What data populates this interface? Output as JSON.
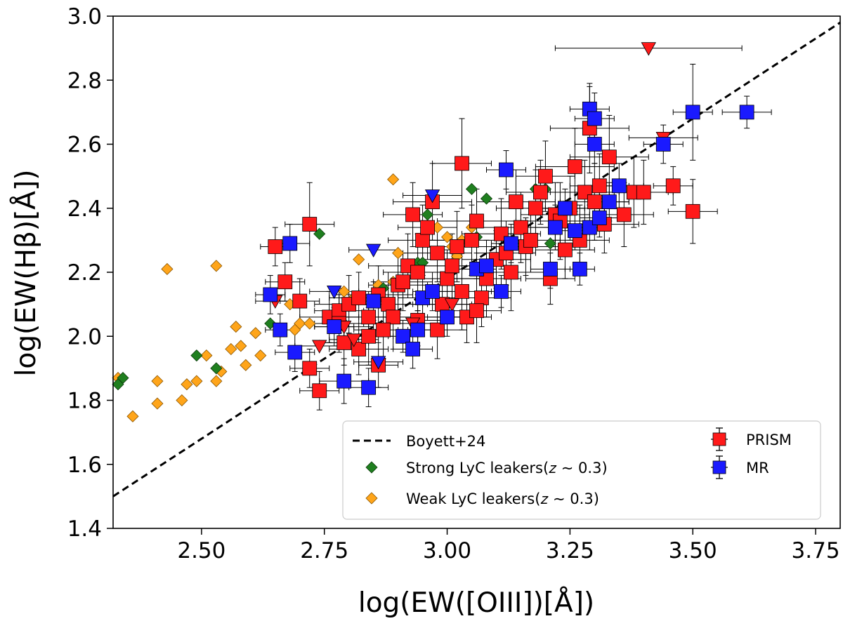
{
  "chart_data": {
    "type": "scatter",
    "title": "",
    "xlabel": "log(EW([OIII])[Å])",
    "ylabel": "log(EW(Hβ)[Å])",
    "xlim": [
      2.32,
      3.8
    ],
    "ylim": [
      1.4,
      3.0
    ],
    "xticks": [
      2.5,
      2.75,
      3.0,
      3.25,
      3.5,
      3.75
    ],
    "xtick_labels": [
      "2.50",
      "2.75",
      "3.00",
      "3.25",
      "3.50",
      "3.75"
    ],
    "yticks": [
      1.4,
      1.6,
      1.8,
      2.0,
      2.2,
      2.4,
      2.6,
      2.8,
      3.0
    ],
    "ytick_labels": [
      "1.4",
      "1.6",
      "1.8",
      "2.0",
      "2.2",
      "2.4",
      "2.6",
      "2.8",
      "3.0"
    ],
    "grid": false,
    "legend_position": "lower-right",
    "colors": {
      "prism": "#ff1a1a",
      "mr": "#1a1aff",
      "strong": "#1f7f1f",
      "weak": "#ffa51a",
      "line": "#000000",
      "errorbar": "#000000"
    },
    "relation": {
      "name": "Boyett+24",
      "style": "dashed",
      "x": [
        2.32,
        3.8
      ],
      "y": [
        1.5,
        2.98
      ]
    },
    "series": [
      {
        "name": "PRISM",
        "marker": "square",
        "points": [
          [
            2.65,
            2.28,
            0.03,
            0.06
          ],
          [
            2.67,
            2.17,
            0.04,
            0.06
          ],
          [
            2.72,
            2.35,
            0.05,
            0.13
          ],
          [
            2.7,
            2.11,
            0.04,
            0.07
          ],
          [
            2.72,
            1.9,
            0.04,
            0.06
          ],
          [
            2.74,
            1.83,
            0.04,
            0.06
          ],
          [
            2.76,
            2.06,
            0.06,
            0.08
          ],
          [
            2.78,
            2.08,
            0.05,
            0.07
          ],
          [
            2.8,
            2.1,
            0.07,
            0.09
          ],
          [
            2.82,
            2.12,
            0.06,
            0.08
          ],
          [
            2.84,
            2.06,
            0.05,
            0.08
          ],
          [
            2.86,
            2.13,
            0.07,
            0.09
          ],
          [
            2.79,
            1.98,
            0.05,
            0.07
          ],
          [
            2.82,
            1.96,
            0.06,
            0.08
          ],
          [
            2.84,
            2.0,
            0.05,
            0.09
          ],
          [
            2.86,
            1.91,
            0.04,
            0.07
          ],
          [
            2.88,
            2.1,
            0.08,
            0.1
          ],
          [
            2.9,
            2.16,
            0.06,
            0.09
          ],
          [
            2.92,
            2.22,
            0.08,
            0.1
          ],
          [
            2.93,
            2.38,
            0.06,
            0.1
          ],
          [
            2.94,
            2.2,
            0.07,
            0.12
          ],
          [
            2.95,
            2.3,
            0.07,
            0.11
          ],
          [
            2.96,
            2.34,
            0.06,
            0.1
          ],
          [
            2.97,
            2.42,
            0.08,
            0.12
          ],
          [
            2.98,
            2.26,
            0.07,
            0.09
          ],
          [
            2.99,
            2.1,
            0.06,
            0.1
          ],
          [
            3.0,
            2.18,
            0.08,
            0.09
          ],
          [
            3.01,
            2.22,
            0.06,
            0.1
          ],
          [
            3.02,
            2.28,
            0.07,
            0.11
          ],
          [
            3.03,
            2.14,
            0.06,
            0.12
          ],
          [
            3.04,
            2.06,
            0.05,
            0.08
          ],
          [
            3.05,
            2.3,
            0.09,
            0.11
          ],
          [
            3.06,
            2.36,
            0.08,
            0.1
          ],
          [
            3.07,
            2.12,
            0.06,
            0.09
          ],
          [
            3.08,
            2.18,
            0.07,
            0.12
          ],
          [
            3.03,
            2.54,
            0.06,
            0.14
          ],
          [
            3.06,
            2.08,
            0.05,
            0.1
          ],
          [
            3.1,
            2.24,
            0.07,
            0.09
          ],
          [
            3.11,
            2.32,
            0.08,
            0.11
          ],
          [
            3.12,
            2.26,
            0.06,
            0.1
          ],
          [
            3.13,
            2.2,
            0.07,
            0.12
          ],
          [
            3.14,
            2.42,
            0.08,
            0.1
          ],
          [
            3.15,
            2.34,
            0.09,
            0.11
          ],
          [
            3.16,
            2.28,
            0.07,
            0.09
          ],
          [
            3.17,
            2.3,
            0.06,
            0.1
          ],
          [
            3.18,
            2.4,
            0.08,
            0.12
          ],
          [
            3.19,
            2.45,
            0.07,
            0.1
          ],
          [
            3.2,
            2.5,
            0.06,
            0.11
          ],
          [
            3.21,
            2.18,
            0.05,
            0.08
          ],
          [
            3.22,
            2.38,
            0.07,
            0.1
          ],
          [
            3.23,
            2.36,
            0.08,
            0.12
          ],
          [
            3.24,
            2.27,
            0.06,
            0.09
          ],
          [
            3.25,
            2.4,
            0.07,
            0.1
          ],
          [
            3.26,
            2.53,
            0.08,
            0.12
          ],
          [
            3.27,
            2.3,
            0.06,
            0.11
          ],
          [
            3.28,
            2.45,
            0.07,
            0.1
          ],
          [
            3.29,
            2.65,
            0.08,
            0.14
          ],
          [
            3.3,
            2.42,
            0.07,
            0.12
          ],
          [
            3.31,
            2.47,
            0.06,
            0.1
          ],
          [
            3.32,
            2.35,
            0.07,
            0.09
          ],
          [
            3.33,
            2.56,
            0.08,
            0.13
          ],
          [
            3.36,
            2.38,
            0.06,
            0.1
          ],
          [
            3.38,
            2.45,
            0.07,
            0.11
          ],
          [
            3.4,
            2.45,
            0.06,
            0.1
          ],
          [
            3.46,
            2.47,
            0.04,
            0.06
          ],
          [
            3.5,
            2.39,
            0.05,
            0.1
          ],
          [
            2.94,
            2.05,
            0.05,
            0.08
          ],
          [
            2.98,
            2.02,
            0.06,
            0.09
          ],
          [
            2.89,
            2.06,
            0.05,
            0.1
          ],
          [
            2.91,
            2.17,
            0.06,
            0.09
          ],
          [
            2.78,
            2.04,
            0.05,
            0.09
          ],
          [
            2.87,
            2.02,
            0.06,
            0.09
          ]
        ],
        "upper_limits": [
          [
            2.65,
            2.11,
            0.04
          ],
          [
            2.74,
            1.97,
            0.05
          ],
          [
            2.79,
            2.03,
            0.06
          ],
          [
            2.81,
            1.99,
            0.05
          ],
          [
            2.93,
            2.04,
            0.06
          ],
          [
            3.0,
            2.06,
            0.05
          ],
          [
            3.01,
            2.1,
            0.06
          ],
          [
            3.41,
            2.9,
            0.19
          ],
          [
            3.44,
            2.62,
            0.07
          ]
        ]
      },
      {
        "name": "MR",
        "marker": "square",
        "points": [
          [
            2.64,
            2.13,
            0.03,
            0.06
          ],
          [
            2.68,
            2.29,
            0.04,
            0.06
          ],
          [
            2.69,
            1.95,
            0.04,
            0.06
          ],
          [
            2.66,
            2.02,
            0.03,
            0.05
          ],
          [
            2.77,
            2.03,
            0.04,
            0.06
          ],
          [
            2.79,
            1.86,
            0.05,
            0.07
          ],
          [
            2.84,
            1.84,
            0.04,
            0.06
          ],
          [
            2.85,
            2.11,
            0.04,
            0.06
          ],
          [
            2.91,
            2.0,
            0.03,
            0.05
          ],
          [
            2.93,
            1.96,
            0.04,
            0.06
          ],
          [
            2.94,
            2.02,
            0.04,
            0.06
          ],
          [
            2.95,
            2.12,
            0.05,
            0.07
          ],
          [
            2.97,
            2.14,
            0.04,
            0.06
          ],
          [
            3.0,
            2.06,
            0.04,
            0.06
          ],
          [
            3.06,
            2.21,
            0.04,
            0.07
          ],
          [
            3.08,
            2.22,
            0.05,
            0.06
          ],
          [
            3.11,
            2.14,
            0.04,
            0.05
          ],
          [
            3.12,
            2.52,
            0.04,
            0.06
          ],
          [
            3.13,
            2.29,
            0.04,
            0.06
          ],
          [
            3.21,
            2.21,
            0.04,
            0.06
          ],
          [
            3.22,
            2.34,
            0.05,
            0.07
          ],
          [
            3.24,
            2.4,
            0.04,
            0.06
          ],
          [
            3.26,
            2.33,
            0.04,
            0.06
          ],
          [
            3.27,
            2.21,
            0.03,
            0.05
          ],
          [
            3.29,
            2.71,
            0.04,
            0.07
          ],
          [
            3.3,
            2.68,
            0.04,
            0.08
          ],
          [
            3.3,
            2.6,
            0.04,
            0.06
          ],
          [
            3.29,
            2.34,
            0.04,
            0.07
          ],
          [
            3.31,
            2.37,
            0.04,
            0.06
          ],
          [
            3.33,
            2.42,
            0.04,
            0.06
          ],
          [
            3.35,
            2.47,
            0.05,
            0.07
          ],
          [
            3.44,
            2.6,
            0.04,
            0.06
          ],
          [
            3.5,
            2.7,
            0.04,
            0.15
          ],
          [
            3.61,
            2.7,
            0.05,
            0.05
          ]
        ],
        "upper_limits": [
          [
            2.77,
            2.14,
            0.05
          ],
          [
            2.85,
            2.27,
            0.05
          ],
          [
            2.86,
            1.92,
            0.05
          ],
          [
            2.97,
            2.44,
            0.06
          ]
        ]
      },
      {
        "name": "Strong LyC leakers(z ~ 0.3)",
        "marker": "diamond",
        "points": [
          [
            2.33,
            1.85
          ],
          [
            2.34,
            1.87
          ],
          [
            2.49,
            1.94
          ],
          [
            2.53,
            1.9
          ],
          [
            2.64,
            2.04
          ],
          [
            2.74,
            2.32
          ],
          [
            2.87,
            2.15
          ],
          [
            2.94,
            2.23
          ],
          [
            2.95,
            2.23
          ],
          [
            2.96,
            2.38
          ],
          [
            3.05,
            2.46
          ],
          [
            3.06,
            2.31
          ],
          [
            3.08,
            2.43
          ],
          [
            3.18,
            2.46
          ],
          [
            3.2,
            2.46
          ],
          [
            3.21,
            2.29
          ]
        ]
      },
      {
        "name": "Weak LyC leakers(z ~ 0.3)",
        "marker": "diamond",
        "points": [
          [
            2.33,
            1.87
          ],
          [
            2.36,
            1.75
          ],
          [
            2.41,
            1.79
          ],
          [
            2.41,
            1.86
          ],
          [
            2.43,
            2.21
          ],
          [
            2.46,
            1.8
          ],
          [
            2.47,
            1.85
          ],
          [
            2.49,
            1.86
          ],
          [
            2.51,
            1.94
          ],
          [
            2.53,
            1.86
          ],
          [
            2.53,
            2.22
          ],
          [
            2.54,
            1.89
          ],
          [
            2.56,
            1.96
          ],
          [
            2.57,
            2.03
          ],
          [
            2.58,
            1.97
          ],
          [
            2.59,
            1.91
          ],
          [
            2.61,
            2.01
          ],
          [
            2.62,
            1.94
          ],
          [
            2.68,
            2.1
          ],
          [
            2.69,
            2.02
          ],
          [
            2.7,
            2.04
          ],
          [
            2.72,
            2.04
          ],
          [
            2.79,
            2.14
          ],
          [
            2.81,
            2.12
          ],
          [
            2.82,
            2.24
          ],
          [
            2.86,
            2.16
          ],
          [
            2.89,
            2.17
          ],
          [
            2.89,
            2.49
          ],
          [
            2.9,
            2.26
          ],
          [
            2.98,
            2.34
          ],
          [
            3.0,
            2.31
          ],
          [
            3.01,
            2.28
          ],
          [
            3.02,
            2.25
          ],
          [
            3.03,
            2.3
          ],
          [
            3.05,
            2.34
          ],
          [
            3.06,
            2.36
          ]
        ]
      }
    ],
    "legend": [
      {
        "key": "boyett",
        "label": "Boyett+24"
      },
      {
        "key": "strong",
        "label": "Strong LyC leakers(𝑧 ∼ 0.3)"
      },
      {
        "key": "weak",
        "label": "Weak LyC leakers(𝑧 ∼ 0.3)"
      },
      {
        "key": "prism",
        "label": "PRISM"
      },
      {
        "key": "mr",
        "label": "MR"
      }
    ]
  }
}
